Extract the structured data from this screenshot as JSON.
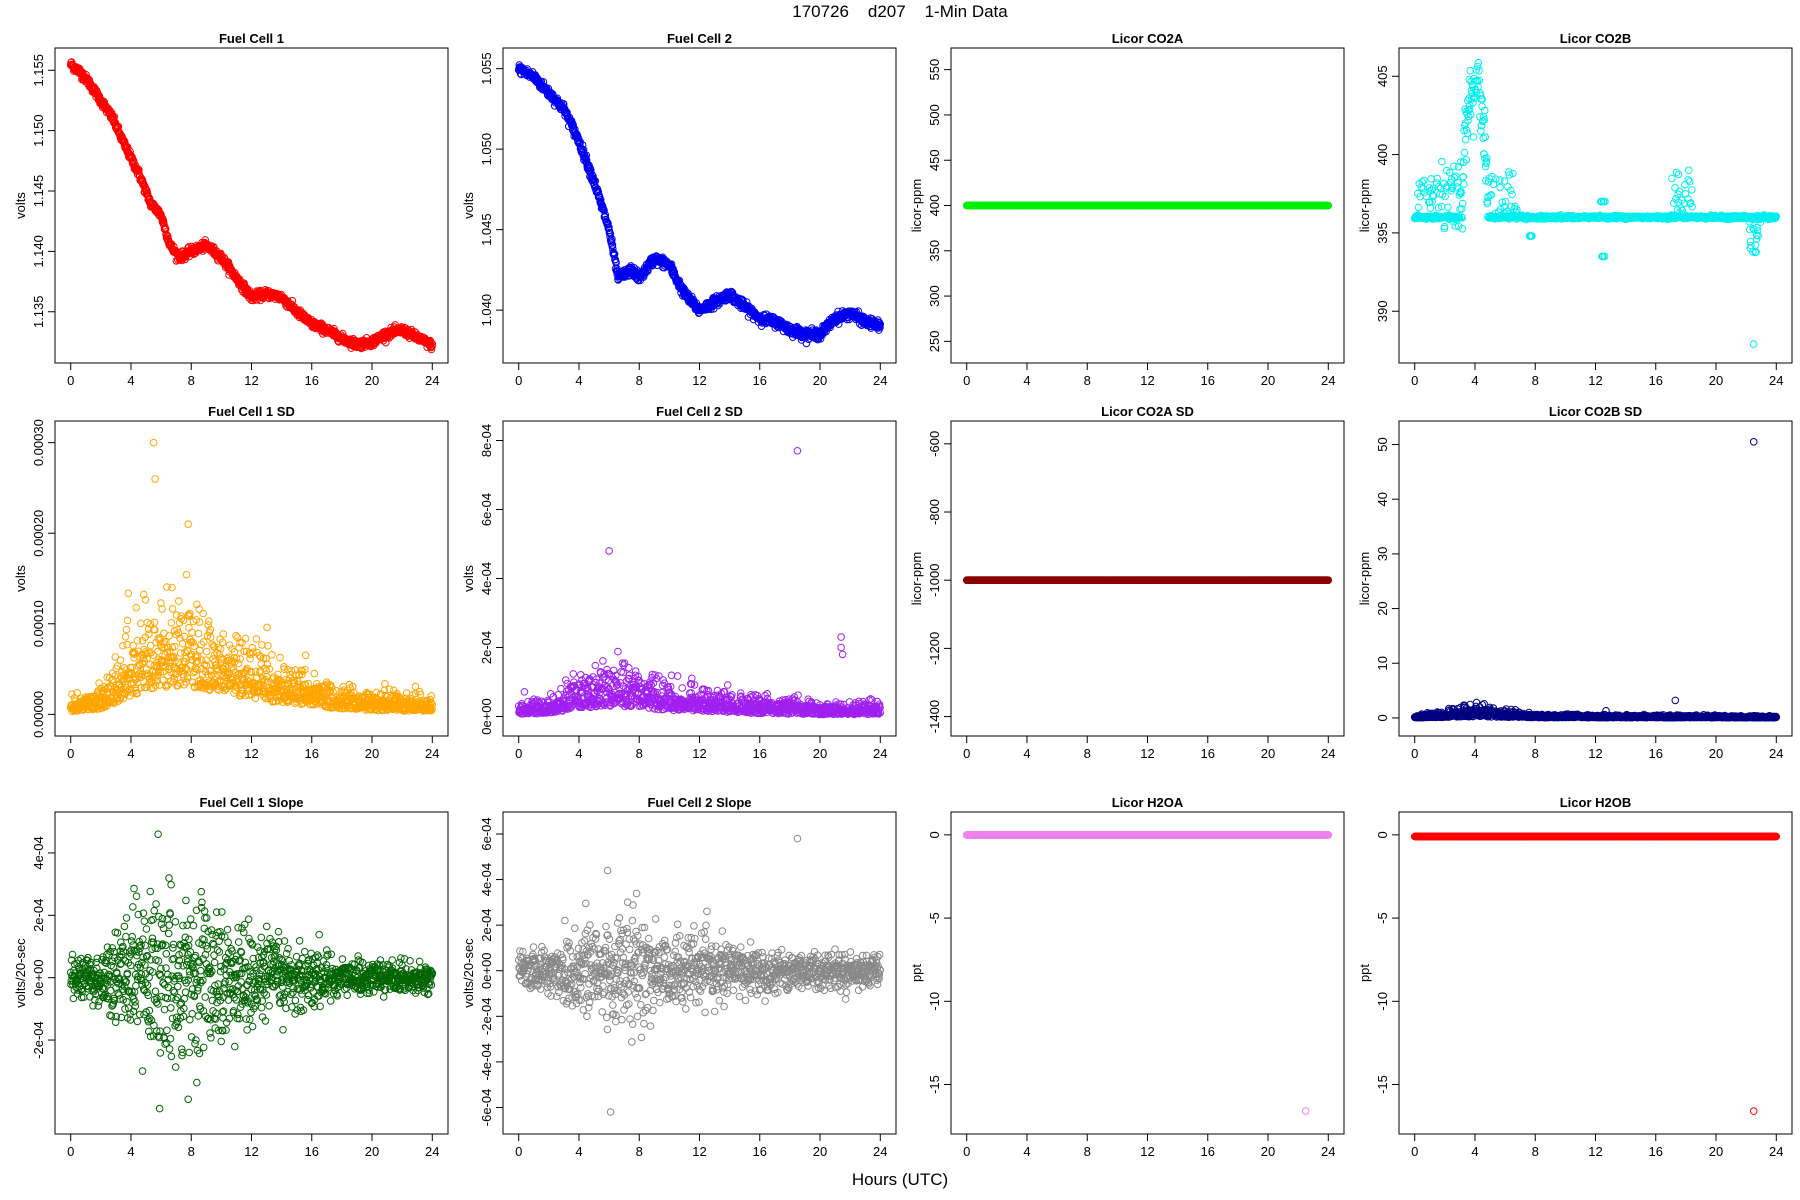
{
  "page": {
    "title": "170726    d207    1-Min Data",
    "xaxis_title": "Hours (UTC)"
  },
  "chart_data": [
    {
      "id": "fc1",
      "type": "scatter",
      "title": "Fuel Cell 1",
      "ylabel": "volts",
      "color": "#ff0000",
      "xlim": [
        0,
        24
      ],
      "ylim": [
        1.1318,
        1.1558
      ],
      "xticks": [
        0,
        4,
        8,
        12,
        16,
        20,
        24
      ],
      "yticks": [
        1.135,
        1.14,
        1.145,
        1.15,
        1.155
      ],
      "ytick_labels": [
        "1.135",
        "1.140",
        "1.145",
        "1.150",
        "1.155"
      ],
      "kind": "trend",
      "trend": [
        [
          0,
          1.1555
        ],
        [
          0.6,
          1.1549
        ],
        [
          1.2,
          1.154
        ],
        [
          2,
          1.1525
        ],
        [
          2.8,
          1.151
        ],
        [
          3.5,
          1.149
        ],
        [
          4.5,
          1.1465
        ],
        [
          5.3,
          1.144
        ],
        [
          6,
          1.143
        ],
        [
          6.6,
          1.1405
        ],
        [
          7.2,
          1.1395
        ],
        [
          8,
          1.14
        ],
        [
          9,
          1.1405
        ],
        [
          10,
          1.1395
        ],
        [
          11,
          1.1378
        ],
        [
          12,
          1.1362
        ],
        [
          13,
          1.1365
        ],
        [
          14,
          1.1362
        ],
        [
          15,
          1.135
        ],
        [
          16,
          1.134
        ],
        [
          17,
          1.1335
        ],
        [
          18,
          1.1328
        ],
        [
          19,
          1.1323
        ],
        [
          20,
          1.1325
        ],
        [
          21,
          1.1332
        ],
        [
          22,
          1.1335
        ],
        [
          22.8,
          1.133
        ],
        [
          24,
          1.1322
        ]
      ],
      "noise": 0.00035,
      "n": 1200
    },
    {
      "id": "fc2",
      "type": "scatter",
      "title": "Fuel Cell 2",
      "ylabel": "volts",
      "color": "#0000ee",
      "xlim": [
        0,
        24
      ],
      "ylim": [
        1.0375,
        1.0555
      ],
      "xticks": [
        0,
        4,
        8,
        12,
        16,
        20,
        24
      ],
      "yticks": [
        1.04,
        1.045,
        1.05,
        1.055
      ],
      "ytick_labels": [
        "1.040",
        "1.045",
        "1.050",
        "1.055"
      ],
      "kind": "trend",
      "trend": [
        [
          0,
          1.055
        ],
        [
          1,
          1.0545
        ],
        [
          2,
          1.0535
        ],
        [
          3,
          1.0525
        ],
        [
          4,
          1.0505
        ],
        [
          5,
          1.048
        ],
        [
          6,
          1.045
        ],
        [
          6.6,
          1.042
        ],
        [
          7.5,
          1.0425
        ],
        [
          8,
          1.042
        ],
        [
          9,
          1.0432
        ],
        [
          10,
          1.0428
        ],
        [
          11,
          1.041
        ],
        [
          12,
          1.04
        ],
        [
          13,
          1.0405
        ],
        [
          14,
          1.041
        ],
        [
          15,
          1.0402
        ],
        [
          16,
          1.0395
        ],
        [
          17,
          1.0393
        ],
        [
          18,
          1.0388
        ],
        [
          19,
          1.0385
        ],
        [
          20,
          1.0385
        ],
        [
          21,
          1.0395
        ],
        [
          22,
          1.0398
        ],
        [
          23,
          1.0393
        ],
        [
          24,
          1.039
        ]
      ],
      "noise": 0.0003,
      "n": 1200
    },
    {
      "id": "co2a",
      "type": "scatter",
      "title": "Licor CO2A",
      "ylabel": "licor-ppm",
      "color": "#00ee00",
      "xlim": [
        0,
        24
      ],
      "ylim": [
        240,
        560
      ],
      "xticks": [
        0,
        4,
        8,
        12,
        16,
        20,
        24
      ],
      "yticks": [
        250,
        300,
        350,
        400,
        450,
        500,
        550
      ],
      "ytick_labels": [
        "250",
        "300",
        "350",
        "400",
        "450",
        "500",
        "550"
      ],
      "kind": "flat",
      "value": 400,
      "n": 1200
    },
    {
      "id": "co2b",
      "type": "scatter",
      "title": "Licor CO2B",
      "ylabel": "licor-ppm",
      "color": "#00eeee",
      "xlim": [
        0,
        24
      ],
      "ylim": [
        387.5,
        406
      ],
      "xticks": [
        0,
        4,
        8,
        12,
        16,
        20,
        24
      ],
      "yticks": [
        390,
        395,
        400,
        405
      ],
      "ytick_labels": [
        "390",
        "395",
        "400",
        "405"
      ],
      "kind": "co2b",
      "base": 396.0,
      "outliers": [
        [
          22.5,
          387.9
        ]
      ],
      "n": 1200
    },
    {
      "id": "fc1sd",
      "type": "scatter",
      "title": "Fuel Cell 1 SD",
      "ylabel": "volts",
      "color": "#ffa500",
      "xlim": [
        0,
        24
      ],
      "ylim": [
        -1e-05,
        0.00031
      ],
      "xticks": [
        0,
        4,
        8,
        12,
        16,
        20,
        24
      ],
      "yticks": [
        0,
        0.0001,
        0.0002,
        0.0003
      ],
      "ytick_labels": [
        "0.00000",
        "0.00010",
        "0.00020",
        "0.00030"
      ],
      "kind": "sd",
      "envelope": [
        [
          0,
          1e-05
        ],
        [
          2,
          2e-05
        ],
        [
          3,
          4e-05
        ],
        [
          4,
          7e-05
        ],
        [
          6,
          0.0001
        ],
        [
          8,
          0.0001
        ],
        [
          10,
          8e-05
        ],
        [
          12,
          6e-05
        ],
        [
          14,
          4e-05
        ],
        [
          16,
          3e-05
        ],
        [
          18,
          2e-05
        ],
        [
          20,
          1.5e-05
        ],
        [
          24,
          1e-05
        ]
      ],
      "spread": 4e-05,
      "outliers": [
        [
          5.5,
          0.0003
        ],
        [
          5.6,
          0.00026
        ],
        [
          7.8,
          0.00021
        ]
      ],
      "n": 1200
    },
    {
      "id": "fc2sd",
      "type": "scatter",
      "title": "Fuel Cell 2 SD",
      "ylabel": "volts",
      "color": "#a020f0",
      "xlim": [
        0,
        24
      ],
      "ylim": [
        -2e-05,
        0.00082
      ],
      "xticks": [
        0,
        4,
        8,
        12,
        16,
        20,
        24
      ],
      "yticks": [
        0,
        0.0002,
        0.0004,
        0.0006,
        0.0008
      ],
      "ytick_labels": [
        "0e+00",
        "2e-04",
        "4e-04",
        "6e-04",
        "8e-04"
      ],
      "kind": "sd",
      "envelope": [
        [
          0,
          2e-05
        ],
        [
          2,
          3e-05
        ],
        [
          4,
          8e-05
        ],
        [
          6,
          0.0001
        ],
        [
          8,
          8e-05
        ],
        [
          10,
          6e-05
        ],
        [
          12,
          5e-05
        ],
        [
          14,
          4e-05
        ],
        [
          16,
          3e-05
        ],
        [
          20,
          2e-05
        ],
        [
          24,
          2e-05
        ]
      ],
      "spread": 5e-05,
      "outliers": [
        [
          6,
          0.00048
        ],
        [
          18.5,
          0.00077
        ],
        [
          21.4,
          0.00023
        ],
        [
          21.4,
          0.0002
        ],
        [
          21.5,
          0.00018
        ]
      ],
      "n": 1200
    },
    {
      "id": "co2asd",
      "type": "scatter",
      "title": "Licor CO2A SD",
      "ylabel": "licor-ppm",
      "color": "#8b0000",
      "xlim": [
        0,
        24
      ],
      "ylim": [
        -1420,
        -570
      ],
      "xticks": [
        0,
        4,
        8,
        12,
        16,
        20,
        24
      ],
      "yticks": [
        -1400,
        -1200,
        -1000,
        -800,
        -600
      ],
      "ytick_labels": [
        "-1400",
        "-1200",
        "-1000",
        "-800",
        "-600"
      ],
      "kind": "flat",
      "value": -1000,
      "n": 1200
    },
    {
      "id": "co2bsd",
      "type": "scatter",
      "title": "Licor CO2B SD",
      "ylabel": "licor-ppm",
      "color": "#000080",
      "xlim": [
        0,
        24
      ],
      "ylim": [
        -1,
        52
      ],
      "xticks": [
        0,
        4,
        8,
        12,
        16,
        20,
        24
      ],
      "yticks": [
        0,
        10,
        20,
        30,
        40,
        50
      ],
      "ytick_labels": [
        "0",
        "10",
        "20",
        "30",
        "40",
        "50"
      ],
      "kind": "sd",
      "envelope": [
        [
          0,
          0.1
        ],
        [
          2,
          0.4
        ],
        [
          4,
          0.8
        ],
        [
          6,
          0.5
        ],
        [
          8,
          0.2
        ],
        [
          24,
          0.1
        ]
      ],
      "spread": 0.4,
      "outliers": [
        [
          22.5,
          50.5
        ],
        [
          17.3,
          3.2
        ],
        [
          4.1,
          2.8
        ],
        [
          12.7,
          1.3
        ]
      ],
      "n": 1200
    },
    {
      "id": "fc1slope",
      "type": "scatter",
      "title": "Fuel Cell 1 Slope",
      "ylabel": "volts/20-sec",
      "color": "#006400",
      "xlim": [
        0,
        24
      ],
      "ylim": [
        -0.00046,
        0.00049
      ],
      "xticks": [
        0,
        4,
        8,
        12,
        16,
        20,
        24
      ],
      "yticks": [
        -0.0002,
        0,
        0.0002,
        0.0004
      ],
      "ytick_labels": [
        "-2e-04",
        "0e+00",
        "2e-04",
        "4e-04"
      ],
      "kind": "spread",
      "center": 0,
      "amp": [
        [
          0,
          3e-05
        ],
        [
          2,
          6e-05
        ],
        [
          4,
          0.00013
        ],
        [
          6,
          0.00016
        ],
        [
          8,
          0.00015
        ],
        [
          10,
          0.00012
        ],
        [
          12,
          0.0001
        ],
        [
          14,
          7e-05
        ],
        [
          16,
          6e-05
        ],
        [
          18,
          4e-05
        ],
        [
          20,
          3e-05
        ],
        [
          24,
          2.5e-05
        ]
      ],
      "outliers": [
        [
          5.8,
          0.00046
        ],
        [
          5.9,
          -0.00042
        ],
        [
          7.8,
          -0.00039
        ]
      ],
      "n": 1200
    },
    {
      "id": "fc2slope",
      "type": "scatter",
      "title": "Fuel Cell 2 Slope",
      "ylabel": "volts/20-sec",
      "color": "#888888",
      "xlim": [
        0,
        24
      ],
      "ylim": [
        -0.00066,
        0.00064
      ],
      "xticks": [
        0,
        4,
        8,
        12,
        16,
        20,
        24
      ],
      "yticks": [
        -0.0006,
        -0.0004,
        -0.0002,
        0,
        0.0002,
        0.0004,
        0.0006
      ],
      "ytick_labels": [
        "-6e-04",
        "-4e-04",
        "-2e-04",
        "0e+00",
        "2e-04",
        "4e-04",
        "6e-04"
      ],
      "kind": "spread",
      "center": 0,
      "amp": [
        [
          0,
          4e-05
        ],
        [
          2,
          7e-05
        ],
        [
          4,
          0.00014
        ],
        [
          6,
          0.00017
        ],
        [
          8,
          0.00014
        ],
        [
          10,
          0.00011
        ],
        [
          12,
          9e-05
        ],
        [
          14,
          7e-05
        ],
        [
          16,
          6e-05
        ],
        [
          20,
          5e-05
        ],
        [
          24,
          4e-05
        ]
      ],
      "outliers": [
        [
          6.1,
          -0.00062
        ],
        [
          18.5,
          0.00058
        ],
        [
          5.9,
          0.00044
        ]
      ],
      "n": 1200
    },
    {
      "id": "h2oa",
      "type": "scatter",
      "title": "Licor H2OA",
      "ylabel": "ppt",
      "color": "#ee82ee",
      "xlim": [
        0,
        24
      ],
      "ylim": [
        -17.2,
        0.6
      ],
      "xticks": [
        0,
        4,
        8,
        12,
        16,
        20,
        24
      ],
      "yticks": [
        -15,
        -10,
        -5,
        0
      ],
      "ytick_labels": [
        "-15",
        "-10",
        "-5",
        "0"
      ],
      "kind": "flat",
      "value": 0,
      "outliers": [
        [
          22.5,
          -16.6
        ]
      ],
      "n": 1200
    },
    {
      "id": "h2ob",
      "type": "scatter",
      "title": "Licor H2OB",
      "ylabel": "ppt",
      "color": "#ff0000",
      "xlim": [
        0,
        24
      ],
      "ylim": [
        -17.2,
        0.6
      ],
      "xticks": [
        0,
        4,
        8,
        12,
        16,
        20,
        24
      ],
      "yticks": [
        -15,
        -10,
        -5,
        0
      ],
      "ytick_labels": [
        "-15",
        "-10",
        "-5",
        "0"
      ],
      "kind": "flat",
      "value": -0.1,
      "outliers": [
        [
          22.5,
          -16.6
        ]
      ],
      "n": 1200
    }
  ]
}
